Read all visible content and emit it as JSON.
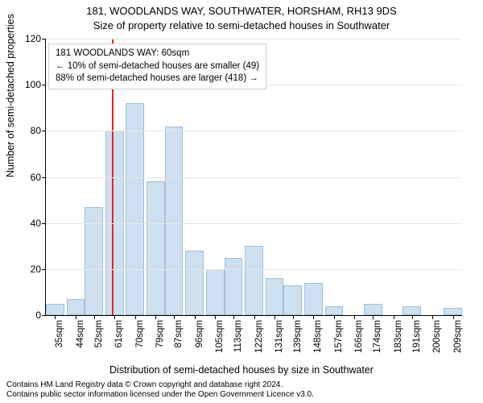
{
  "title_line1": "181, WOODLANDS WAY, SOUTHWATER, HORSHAM, RH13 9DS",
  "title_line2": "Size of property relative to semi-detached houses in Southwater",
  "y_axis_label": "Number of semi-detached properties",
  "x_axis_label": "Distribution of semi-detached houses by size in Southwater",
  "chart": {
    "type": "histogram",
    "ylim": [
      0,
      120
    ],
    "ytick_step": 20,
    "y_ticks": [
      0,
      20,
      40,
      60,
      80,
      100,
      120
    ],
    "grid_color": "#e6e6e6",
    "axis_color": "#000000",
    "background_color": "#ffffff",
    "bar_fill": "#cee0ef",
    "bar_stroke": "#a2bfd8",
    "marker_color": "#ed2224",
    "marker_x": 60,
    "x_axis_domain": [
      31,
      213
    ],
    "bar_width_sqm": 8,
    "title_fontsize": 13,
    "axis_label_fontsize": 12.5,
    "tick_fontsize": 12,
    "xtick_fontsize": 11.5,
    "bars": [
      {
        "sqm": 35,
        "count": 5
      },
      {
        "sqm": 44,
        "count": 7
      },
      {
        "sqm": 52,
        "count": 47
      },
      {
        "sqm": 61,
        "count": 80
      },
      {
        "sqm": 70,
        "count": 92
      },
      {
        "sqm": 79,
        "count": 58
      },
      {
        "sqm": 87,
        "count": 82
      },
      {
        "sqm": 96,
        "count": 28
      },
      {
        "sqm": 105,
        "count": 20
      },
      {
        "sqm": 113,
        "count": 25
      },
      {
        "sqm": 122,
        "count": 30
      },
      {
        "sqm": 131,
        "count": 16
      },
      {
        "sqm": 139,
        "count": 13
      },
      {
        "sqm": 148,
        "count": 14
      },
      {
        "sqm": 157,
        "count": 4
      },
      {
        "sqm": 166,
        "count": 0
      },
      {
        "sqm": 174,
        "count": 5
      },
      {
        "sqm": 183,
        "count": 0
      },
      {
        "sqm": 191,
        "count": 4
      },
      {
        "sqm": 200,
        "count": 0
      },
      {
        "sqm": 209,
        "count": 3
      }
    ]
  },
  "info_box": {
    "line1": "181 WOODLANDS WAY: 60sqm",
    "line2": "← 10% of semi-detached houses are smaller (49)",
    "line3": "88% of semi-detached houses are larger (418) →",
    "border_color": "#cccccc",
    "background_color": "#ffffff",
    "fontsize": 11.5
  },
  "caption": {
    "line1": "Contains HM Land Registry data © Crown copyright and database right 2024.",
    "line2": "Contains public sector information licensed under the Open Government Licence v3.0.",
    "fontsize": 10
  }
}
